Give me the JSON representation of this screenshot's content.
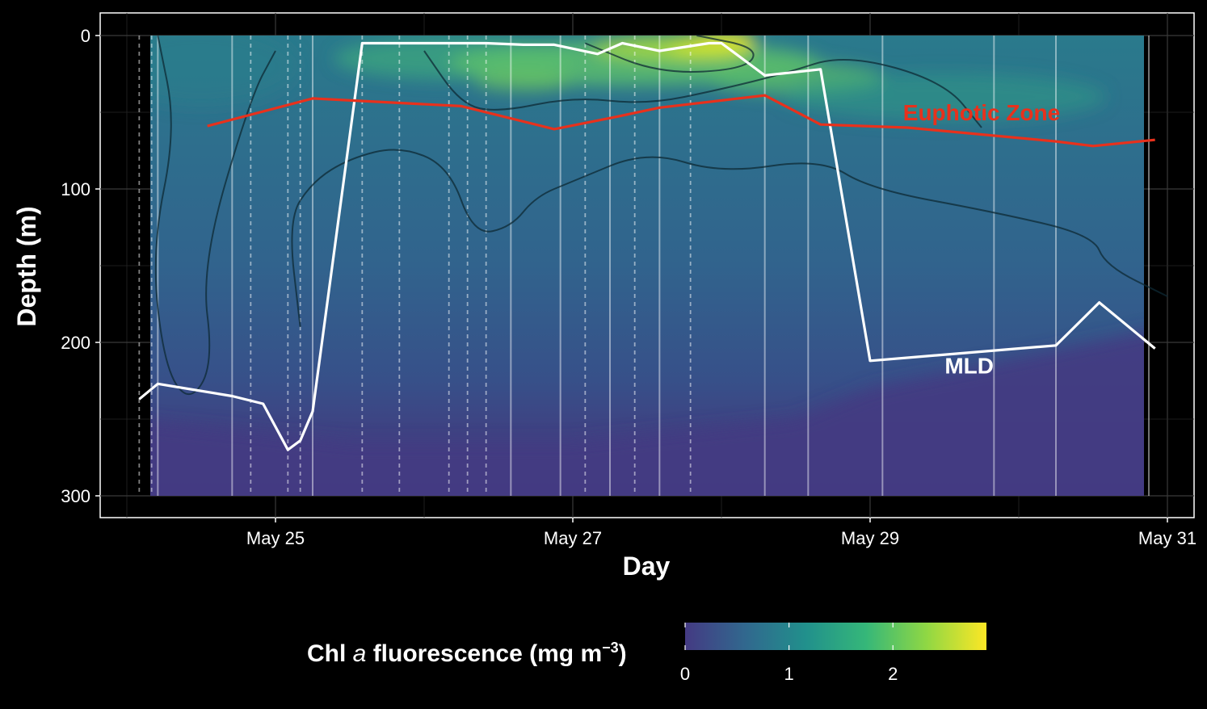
{
  "chart_data": {
    "type": "heatmap",
    "xlabel": "Day",
    "ylabel": "Depth (m)",
    "x_range": [
      "2023-05-23 23:00",
      "2023-05-31 00:00"
    ],
    "x_ticks": [
      {
        "date": "2023-05-25",
        "label": "May 25"
      },
      {
        "date": "2023-05-27",
        "label": "May 27"
      },
      {
        "date": "2023-05-29",
        "label": "May 29"
      },
      {
        "date": "2023-05-31",
        "label": "May 31"
      }
    ],
    "y_range": [
      0,
      300
    ],
    "y_reversed": true,
    "y_ticks": [
      0,
      100,
      200,
      300
    ],
    "grid": true,
    "colorbar": {
      "title_main": "Chl",
      "title_italic": "a",
      "title_rest": " fluorescence (mg m",
      "title_sup": "−3",
      "title_close": ")",
      "min": 0,
      "max": 2.9,
      "ticks": [
        0,
        1,
        2
      ],
      "palette": [
        "#443a83",
        "#31688e",
        "#21908c",
        "#35b779",
        "#8fd744",
        "#fde725"
      ]
    },
    "hotspots": [
      {
        "x": "2023-05-28 00:00",
        "depth": 5,
        "value": 2.9
      },
      {
        "x": "2023-05-27 12:00",
        "depth": 15,
        "value": 2.0
      },
      {
        "x": "2023-05-26 16:00",
        "depth": 25,
        "value": 1.6
      },
      {
        "x": "2023-05-28 12:00",
        "depth": 30,
        "value": 1.5
      }
    ],
    "casts_solid": [
      "2023-05-24 05:00",
      "2023-05-24 17:00",
      "2023-05-25 06:00",
      "2023-05-26 14:00",
      "2023-05-26 22:00",
      "2023-05-27 06:00",
      "2023-05-27 14:00",
      "2023-05-28 07:00",
      "2023-05-28 14:00",
      "2023-05-29 02:00",
      "2023-05-29 20:00",
      "2023-05-30 06:00",
      "2023-05-30 21:00"
    ],
    "casts_dashed": [
      "2023-05-24 02:00",
      "2023-05-24 04:00",
      "2023-05-24 20:00",
      "2023-05-25 02:00",
      "2023-05-25 04:00",
      "2023-05-25 14:00",
      "2023-05-25 20:00",
      "2023-05-26 04:00",
      "2023-05-26 07:00",
      "2023-05-26 10:00",
      "2023-05-27 02:00",
      "2023-05-27 10:00",
      "2023-05-27 19:00"
    ],
    "series": [
      {
        "name": "MLD",
        "color": "#ffffff",
        "points": [
          [
            "2023-05-24 02:00",
            237
          ],
          [
            "2023-05-24 05:00",
            227
          ],
          [
            "2023-05-24 17:00",
            235
          ],
          [
            "2023-05-24 22:00",
            240
          ],
          [
            "2023-05-25 02:00",
            270
          ],
          [
            "2023-05-25 04:00",
            264
          ],
          [
            "2023-05-25 06:00",
            245
          ],
          [
            "2023-05-25 14:00",
            5
          ],
          [
            "2023-05-26 10:00",
            5
          ],
          [
            "2023-05-26 16:00",
            6
          ],
          [
            "2023-05-26 21:00",
            6
          ],
          [
            "2023-05-27 04:00",
            12
          ],
          [
            "2023-05-27 08:00",
            5
          ],
          [
            "2023-05-27 14:00",
            10
          ],
          [
            "2023-05-27 22:00",
            5
          ],
          [
            "2023-05-28 00:00",
            5
          ],
          [
            "2023-05-28 07:00",
            26
          ],
          [
            "2023-05-28 16:00",
            22
          ],
          [
            "2023-05-29 00:00",
            212
          ],
          [
            "2023-05-30 06:00",
            202
          ],
          [
            "2023-05-30 13:00",
            174
          ],
          [
            "2023-05-30 22:00",
            204
          ]
        ]
      },
      {
        "name": "Euphotic Zone",
        "color": "#e8311c",
        "points": [
          [
            "2023-05-24 13:00",
            59
          ],
          [
            "2023-05-25 06:00",
            41
          ],
          [
            "2023-05-26 06:00",
            46
          ],
          [
            "2023-05-26 21:00",
            61
          ],
          [
            "2023-05-27 07:00",
            53
          ],
          [
            "2023-05-27 14:00",
            47
          ],
          [
            "2023-05-28 07:00",
            39
          ],
          [
            "2023-05-28 16:00",
            58
          ],
          [
            "2023-05-29 06:00",
            60
          ],
          [
            "2023-05-30 06:00",
            69
          ],
          [
            "2023-05-30 12:00",
            72
          ],
          [
            "2023-05-30 22:00",
            68
          ]
        ]
      }
    ],
    "annotations": [
      {
        "text": "Euphotic Zone",
        "color": "#e8311c",
        "x": "2023-05-29 18:00",
        "depth": 50
      },
      {
        "text": "MLD",
        "color": "#ffffff",
        "x": "2023-05-29 16:00",
        "depth": 215
      }
    ]
  }
}
